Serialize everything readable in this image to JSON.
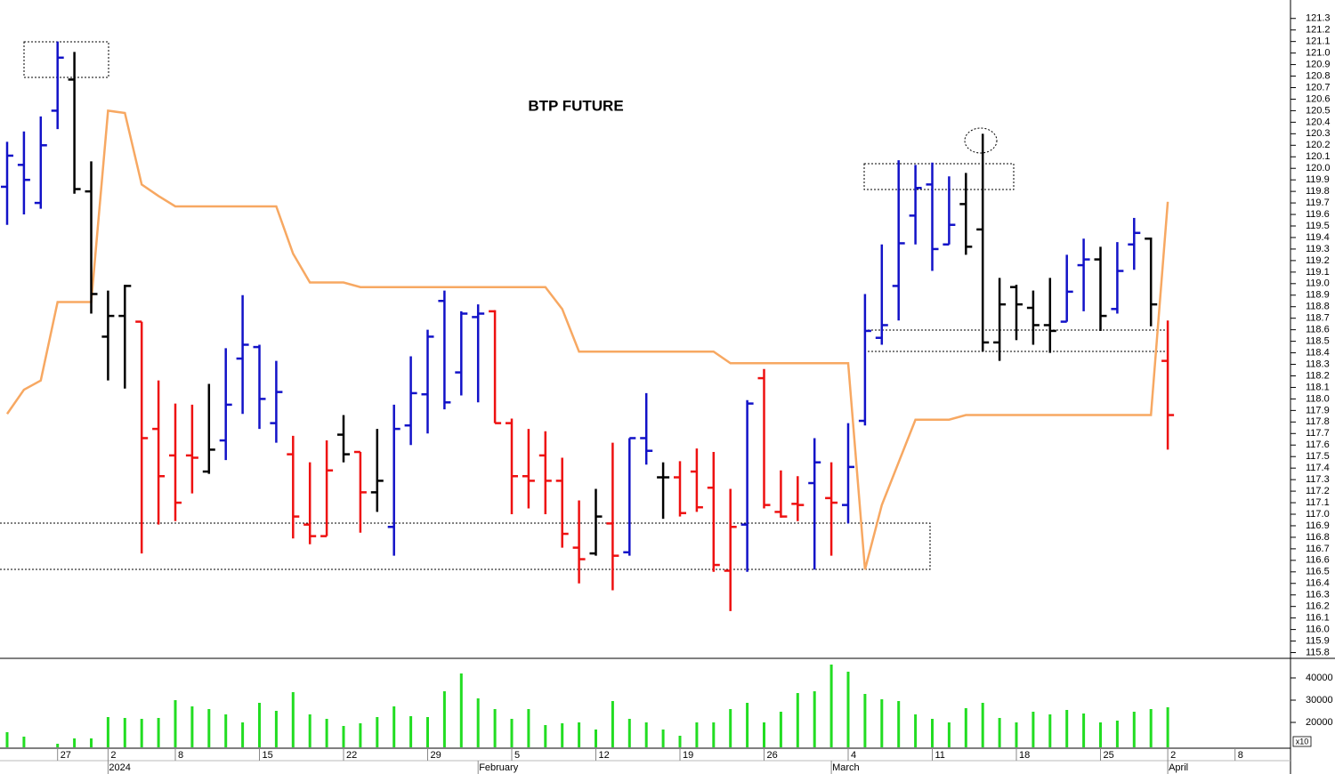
{
  "chart_data": [
    {
      "type": "ohlc",
      "title": "BTP FUTURE",
      "categories": [
        null,
        null,
        null,
        "27",
        null,
        null,
        "2",
        null,
        null,
        null,
        "8",
        null,
        null,
        null,
        null,
        "15",
        null,
        null,
        null,
        null,
        "22",
        null,
        null,
        null,
        null,
        "29",
        null,
        null,
        null,
        null,
        "5",
        null,
        null,
        null,
        null,
        "12",
        null,
        null,
        null,
        null,
        "19",
        null,
        null,
        null,
        null,
        "26",
        null,
        null,
        null,
        null,
        "4",
        null,
        null,
        null,
        null,
        "11",
        null,
        null,
        null,
        null,
        "18",
        null,
        null,
        null,
        null,
        "25",
        null,
        null,
        null,
        "2",
        null,
        null,
        null,
        "8"
      ],
      "x_groups": [
        {
          "label": "2024",
          "start": 6
        },
        {
          "label": "February",
          "start": 28
        },
        {
          "label": "March",
          "start": 49
        },
        {
          "label": "April",
          "start": 69
        }
      ],
      "open": [
        119.84,
        120.03,
        119.7,
        120.5,
        120.77,
        119.8,
        118.54,
        118.72,
        118.67,
        117.74,
        117.51,
        117.51,
        117.37,
        117.64,
        118.35,
        118.45,
        117.79,
        117.52,
        116.91,
        116.81,
        117.69,
        117.54,
        117.19,
        116.89,
        117.77,
        118.04,
        118.85,
        118.23,
        118.71,
        118.76,
        117.79,
        117.33,
        117.51,
        117.29,
        116.71,
        116.66,
        116.92,
        116.67,
        117.66,
        117.32,
        117.32,
        117.37,
        117.23,
        116.51,
        116.91,
        118.18,
        117.02,
        117.09,
        117.27,
        117.14,
        117.08,
        117.81,
        118.53,
        118.98,
        119.59,
        119.86,
        119.34,
        119.69,
        119.47,
        118.49,
        118.97,
        118.79,
        118.64,
        118.67,
        119.16,
        119.21,
        118.78,
        119.34,
        119.39,
        118.33,
        null,
        null,
        null,
        null
      ],
      "high": [
        120.23,
        120.32,
        120.45,
        121.1,
        121.01,
        120.06,
        118.94,
        118.99,
        118.67,
        118.16,
        117.96,
        117.95,
        118.13,
        118.44,
        118.9,
        118.47,
        118.33,
        117.68,
        117.45,
        117.64,
        117.86,
        117.54,
        117.74,
        117.95,
        118.37,
        118.6,
        118.94,
        118.76,
        118.82,
        118.77,
        117.83,
        117.74,
        117.72,
        117.49,
        117.12,
        117.22,
        117.62,
        117.66,
        118.05,
        117.45,
        117.46,
        117.57,
        117.54,
        117.22,
        117.99,
        118.26,
        117.38,
        117.33,
        117.66,
        117.45,
        117.79,
        118.91,
        119.34,
        120.07,
        120.03,
        120.05,
        119.93,
        119.96,
        120.3,
        119.05,
        118.99,
        118.94,
        119.05,
        119.25,
        119.39,
        119.32,
        119.36,
        119.57,
        119.4,
        118.68,
        null,
        null,
        null,
        null
      ],
      "low": [
        119.51,
        119.6,
        119.65,
        120.34,
        119.78,
        118.74,
        118.16,
        118.09,
        116.66,
        116.91,
        116.94,
        117.18,
        117.35,
        117.47,
        117.87,
        117.74,
        117.62,
        116.79,
        116.74,
        116.81,
        117.45,
        116.84,
        117.02,
        116.64,
        117.6,
        117.7,
        117.91,
        118.03,
        117.97,
        117.79,
        117.0,
        117.05,
        117.0,
        116.71,
        116.4,
        116.64,
        116.34,
        116.64,
        117.43,
        116.96,
        116.98,
        117.02,
        116.5,
        116.16,
        116.5,
        117.05,
        116.97,
        116.94,
        116.52,
        116.64,
        116.92,
        117.77,
        118.47,
        118.68,
        119.34,
        119.11,
        119.34,
        119.25,
        118.41,
        118.33,
        118.51,
        118.47,
        118.4,
        118.67,
        118.76,
        118.59,
        118.74,
        119.12,
        118.63,
        117.56,
        null,
        null,
        null,
        null
      ],
      "close": [
        120.11,
        119.9,
        120.2,
        120.96,
        119.82,
        118.91,
        118.72,
        118.98,
        117.66,
        117.33,
        117.1,
        117.49,
        117.56,
        117.95,
        118.47,
        118.0,
        118.06,
        116.98,
        116.81,
        117.38,
        117.52,
        117.19,
        117.29,
        117.74,
        118.05,
        118.54,
        117.97,
        118.74,
        118.74,
        117.79,
        117.33,
        117.29,
        117.29,
        116.83,
        116.61,
        116.98,
        116.64,
        117.66,
        117.55,
        117.32,
        117.01,
        117.06,
        116.56,
        116.89,
        117.96,
        117.08,
        116.98,
        117.08,
        117.45,
        117.1,
        117.41,
        118.59,
        118.64,
        119.35,
        119.83,
        119.3,
        119.51,
        119.32,
        118.49,
        118.82,
        118.82,
        118.64,
        118.59,
        118.93,
        119.21,
        118.72,
        119.11,
        119.44,
        118.82,
        117.86,
        null,
        null,
        null,
        null
      ],
      "bar_colors": [
        "blue",
        "blue",
        "blue",
        "blue",
        "black",
        "black",
        "black",
        "black",
        "red",
        "red",
        "red",
        "red",
        "black",
        "blue",
        "blue",
        "blue",
        "blue",
        "red",
        "red",
        "red",
        "black",
        "red",
        "black",
        "blue",
        "blue",
        "blue",
        "blue",
        "blue",
        "blue",
        "red",
        "red",
        "red",
        "red",
        "red",
        "red",
        "black",
        "red",
        "blue",
        "blue",
        "black",
        "red",
        "red",
        "red",
        "red",
        "blue",
        "red",
        "red",
        "red",
        "blue",
        "red",
        "blue",
        "blue",
        "blue",
        "blue",
        "blue",
        "blue",
        "blue",
        "black",
        "black",
        "black",
        "black",
        "black",
        "black",
        "blue",
        "blue",
        "black",
        "blue",
        "blue",
        "black",
        "red",
        null,
        null,
        null,
        null
      ],
      "palette": {
        "blue": "#1212c8",
        "black": "#000000",
        "red": "#ee1111"
      },
      "overlay": {
        "color": "#f7a862",
        "values": [
          117.87,
          118.08,
          118.16,
          118.84,
          118.84,
          118.84,
          120.5,
          120.48,
          119.86,
          119.76,
          119.67,
          119.67,
          119.67,
          119.67,
          119.67,
          119.67,
          119.67,
          119.26,
          119.01,
          119.01,
          119.01,
          118.97,
          118.97,
          118.97,
          118.97,
          118.97,
          118.97,
          118.97,
          118.97,
          118.97,
          118.97,
          118.97,
          118.97,
          118.78,
          118.41,
          118.41,
          118.41,
          118.41,
          118.41,
          118.41,
          118.41,
          118.41,
          118.41,
          118.31,
          118.31,
          118.31,
          118.31,
          118.31,
          118.31,
          118.31,
          118.31,
          116.52,
          117.08,
          117.45,
          117.82,
          117.82,
          117.82,
          117.86,
          117.86,
          117.86,
          117.86,
          117.86,
          117.86,
          117.86,
          117.86,
          117.86,
          117.86,
          117.86,
          117.86,
          119.71,
          null,
          null,
          null,
          null
        ]
      },
      "ylim": [
        115.75,
        121.46
      ],
      "yticks": [
        115.8,
        115.9,
        {
          "value": 116,
          "label": "116.0"
        },
        116.1,
        116.2,
        116.3,
        116.4,
        116.5,
        116.6,
        116.7,
        116.8,
        116.9,
        {
          "value": 117,
          "label": "117.0"
        },
        117.1,
        117.2,
        117.3,
        117.4,
        117.5,
        117.6,
        117.7,
        117.8,
        117.9,
        {
          "value": 118,
          "label": "118.0"
        },
        118.1,
        118.2,
        118.3,
        118.4,
        118.5,
        118.6,
        118.7,
        118.8,
        118.9,
        {
          "value": 119,
          "label": "119.0"
        },
        119.1,
        119.2,
        119.3,
        119.4,
        119.5,
        119.6,
        119.7,
        119.8,
        119.9,
        {
          "value": 120,
          "label": "120.0"
        },
        120.1,
        120.2,
        120.3,
        120.4,
        120.5,
        120.6,
        120.7,
        120.8,
        120.9,
        {
          "value": 121,
          "label": "121.0"
        },
        121.1,
        121.2,
        121.3
      ]
    },
    {
      "type": "bar",
      "color": "#22dd22",
      "unit_label": "x10",
      "values": [
        15600,
        13600,
        null,
        10400,
        12800,
        12800,
        22400,
        22000,
        21600,
        22000,
        30000,
        27200,
        26000,
        23600,
        20000,
        28800,
        25200,
        33600,
        23600,
        21600,
        18400,
        19600,
        22400,
        27200,
        22800,
        22400,
        34000,
        42000,
        30800,
        26000,
        21600,
        26000,
        18800,
        19600,
        20000,
        16800,
        29600,
        21600,
        20000,
        16800,
        14000,
        20000,
        20000,
        26000,
        28800,
        20000,
        24800,
        33200,
        34000,
        46000,
        42800,
        32800,
        30400,
        29600,
        23600,
        21600,
        20000,
        26400,
        28800,
        22000,
        20000,
        24800,
        23600,
        25600,
        24000,
        20000,
        20800,
        24800,
        26000,
        26800,
        null,
        null,
        null,
        null
      ],
      "ylim": [
        8800,
        48000
      ],
      "yticks": [
        20000,
        30000,
        40000
      ]
    }
  ]
}
